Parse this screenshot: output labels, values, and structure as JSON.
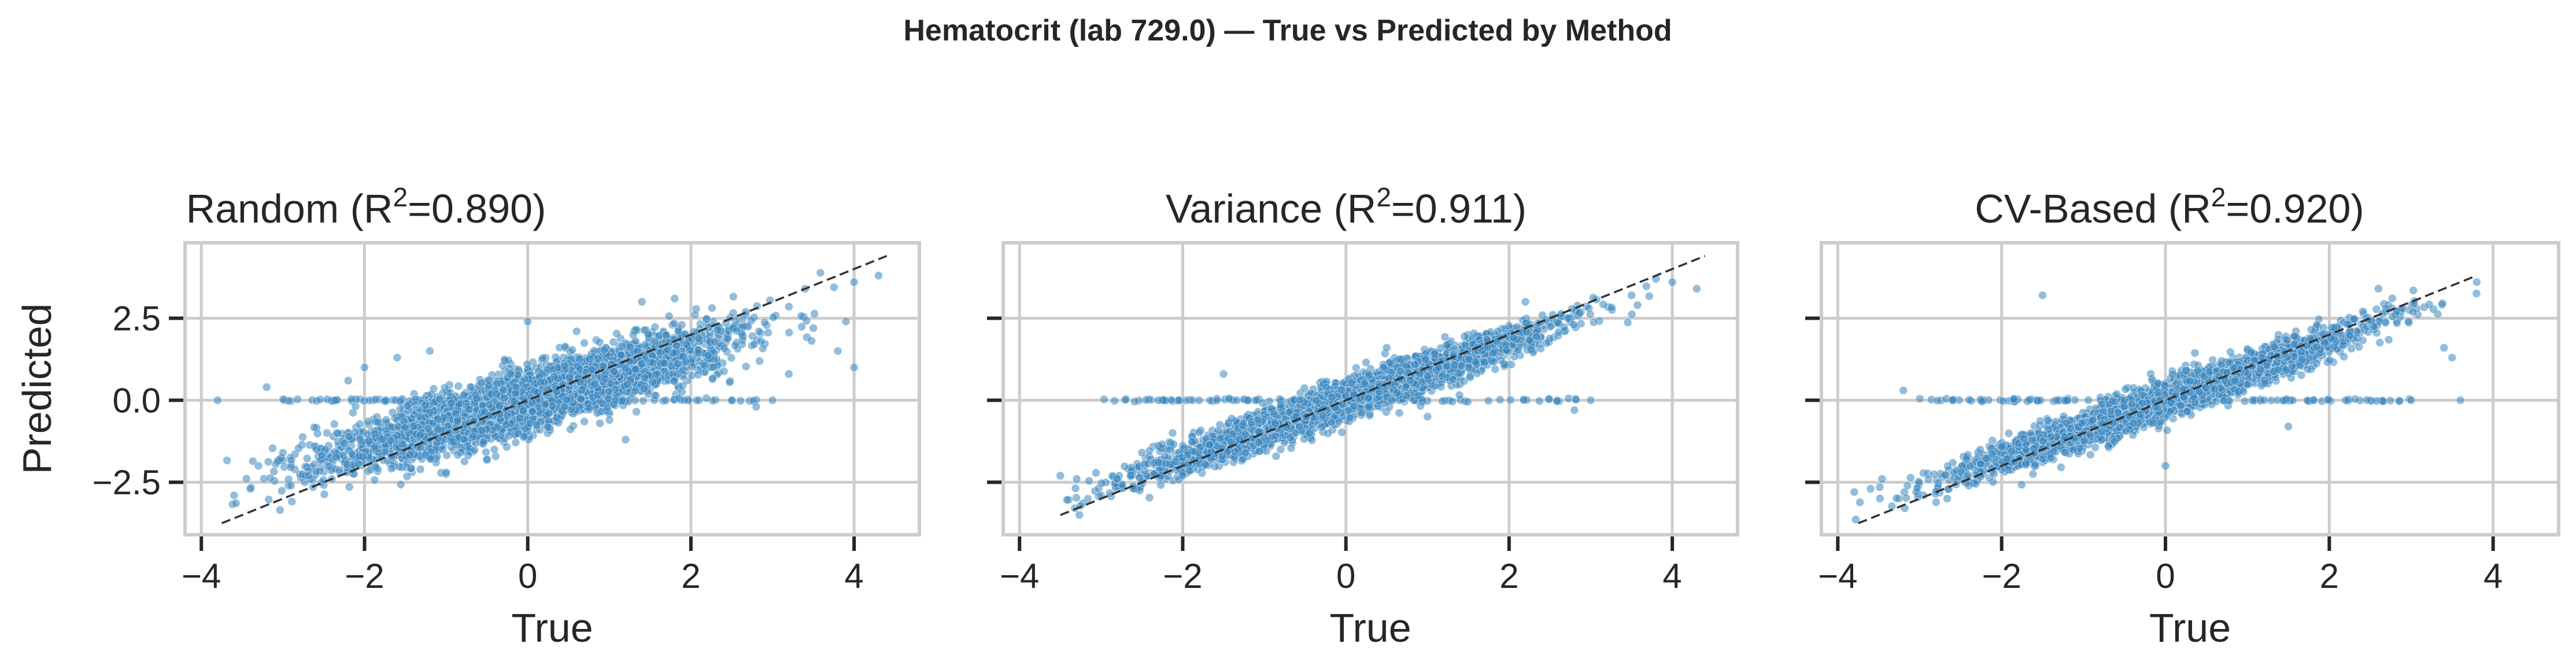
{
  "figure": {
    "suptitle": "Hematocrit (lab 729.0) — True vs Predicted by Method"
  },
  "colors": {
    "points": "#3b86c0",
    "reference_line": "#333333",
    "grid": "#cccccc",
    "frame": "#cccccc",
    "text": "#262626"
  },
  "chart_data": [
    {
      "type": "scatter",
      "title_main": "Random (R",
      "title_sup": "2",
      "title_rest": "=0.890)",
      "xlabel": "True",
      "ylabel": "Predicted",
      "xlim": [
        -4.2,
        4.8
      ],
      "ylim": [
        -4.1,
        4.8
      ],
      "xticks": [
        -4,
        -2,
        0,
        2,
        4
      ],
      "xtick_labels": [
        "−4",
        "−2",
        "0",
        "2",
        "4"
      ],
      "yticks": [
        -2.5,
        0.0,
        2.5
      ],
      "ytick_labels": [
        "−2.5",
        "0.0",
        "2.5"
      ],
      "show_ytick_labels": true,
      "grid": true,
      "reference_line": {
        "style": "dashed",
        "x": [
          -3.75,
          4.4
        ],
        "y": [
          -3.75,
          4.4
        ]
      },
      "series": [
        {
          "point_count": 4200,
          "relationship": {
            "slope": 0.73,
            "intercept": 0.0,
            "noise_sd": 0.45
          },
          "x_range": [
            -3.7,
            4.3
          ],
          "points": [
            [
              -3.6,
              -2.9
            ],
            [
              -3.4,
              -2.7
            ],
            [
              -3.3,
              -2.0
            ],
            [
              -3.0,
              -1.6
            ],
            [
              -3.2,
              0.4
            ],
            [
              -3.8,
              0.0
            ],
            [
              -2.9,
              -2.6
            ],
            [
              -2.4,
              -2.4
            ],
            [
              -2.0,
              1.0
            ],
            [
              -2.2,
              0.6
            ],
            [
              -1.6,
              1.3
            ],
            [
              -1.2,
              1.5
            ],
            [
              -1.0,
              -2.2
            ],
            [
              0.0,
              2.4
            ],
            [
              0.6,
              2.1
            ],
            [
              1.2,
              -1.2
            ],
            [
              1.4,
              3.0
            ],
            [
              2.8,
              -0.2
            ],
            [
              3.0,
              0.0
            ],
            [
              3.4,
              3.4
            ],
            [
              3.8,
              1.5
            ],
            [
              4.0,
              1.0
            ],
            [
              4.3,
              3.8
            ],
            [
              4.0,
              3.6
            ],
            [
              3.5,
              2.2
            ],
            [
              2.5,
              0.0
            ],
            [
              1.8,
              3.1
            ],
            [
              -0.5,
              -1.8
            ],
            [
              3.2,
              0.8
            ],
            [
              3.9,
              2.4
            ]
          ]
        }
      ]
    },
    {
      "type": "scatter",
      "title_main": "Variance (R",
      "title_sup": "2",
      "title_rest": "=0.911)",
      "xlabel": "True",
      "ylabel": "",
      "xlim": [
        -4.2,
        4.8
      ],
      "ylim": [
        -4.1,
        4.8
      ],
      "xticks": [
        -4,
        -2,
        0,
        2,
        4
      ],
      "xtick_labels": [
        "−4",
        "−2",
        "0",
        "2",
        "4"
      ],
      "yticks": [
        -2.5,
        0.0,
        2.5
      ],
      "ytick_labels": [],
      "show_ytick_labels": false,
      "grid": true,
      "reference_line": {
        "style": "dashed",
        "x": [
          -3.5,
          4.4
        ],
        "y": [
          -3.5,
          4.4
        ]
      },
      "series": [
        {
          "point_count": 3800,
          "relationship": {
            "slope": 0.88,
            "intercept": 0.0,
            "noise_sd": 0.28
          },
          "x_range": [
            -3.5,
            4.3
          ],
          "points": [
            [
              -3.5,
              -2.3
            ],
            [
              -3.3,
              -2.4
            ],
            [
              -3.0,
              -2.9
            ],
            [
              -2.6,
              -2.7
            ],
            [
              -2.0,
              -2.3
            ],
            [
              -2.5,
              -1.6
            ],
            [
              -2.3,
              0.0
            ],
            [
              -1.8,
              0.0
            ],
            [
              -1.2,
              0.0
            ],
            [
              -1.5,
              0.8
            ],
            [
              2.8,
              -0.3
            ],
            [
              3.0,
              0.0
            ],
            [
              2.2,
              3.0
            ],
            [
              3.8,
              3.7
            ],
            [
              4.3,
              3.4
            ],
            [
              4.0,
              3.6
            ],
            [
              3.5,
              3.2
            ],
            [
              1.0,
              -0.5
            ],
            [
              -0.8,
              -1.5
            ],
            [
              0.5,
              1.6
            ]
          ]
        }
      ]
    },
    {
      "type": "scatter",
      "title_main": "CV-Based (R",
      "title_sup": "2",
      "title_rest": "=0.920)",
      "xlabel": "True",
      "ylabel": "",
      "xlim": [
        -4.2,
        4.8
      ],
      "ylim": [
        -4.1,
        4.8
      ],
      "xticks": [
        -4,
        -2,
        0,
        2,
        4
      ],
      "xtick_labels": [
        "−4",
        "−2",
        "0",
        "2",
        "4"
      ],
      "yticks": [
        -2.5,
        0.0,
        2.5
      ],
      "ytick_labels": [],
      "show_ytick_labels": false,
      "grid": true,
      "reference_line": {
        "style": "dashed",
        "x": [
          -3.75,
          3.8
        ],
        "y": [
          -3.75,
          3.8
        ]
      },
      "series": [
        {
          "point_count": 3800,
          "relationship": {
            "slope": 0.9,
            "intercept": 0.0,
            "noise_sd": 0.27
          },
          "x_range": [
            -3.8,
            3.8
          ],
          "points": [
            [
              -3.8,
              -2.8
            ],
            [
              -3.6,
              -2.7
            ],
            [
              -3.2,
              0.3
            ],
            [
              -2.4,
              -2.6
            ],
            [
              -2.6,
              0.0
            ],
            [
              -1.5,
              3.2
            ],
            [
              -1.2,
              0.0
            ],
            [
              -0.5,
              0.0
            ],
            [
              0.0,
              -2.0
            ],
            [
              2.2,
              0.0
            ],
            [
              3.0,
              0.0
            ],
            [
              3.4,
              1.6
            ],
            [
              3.5,
              1.3
            ],
            [
              3.8,
              3.6
            ],
            [
              3.6,
              0.0
            ],
            [
              1.5,
              -0.8
            ],
            [
              -2.0,
              -1.4
            ],
            [
              2.6,
              3.4
            ]
          ]
        }
      ]
    }
  ]
}
